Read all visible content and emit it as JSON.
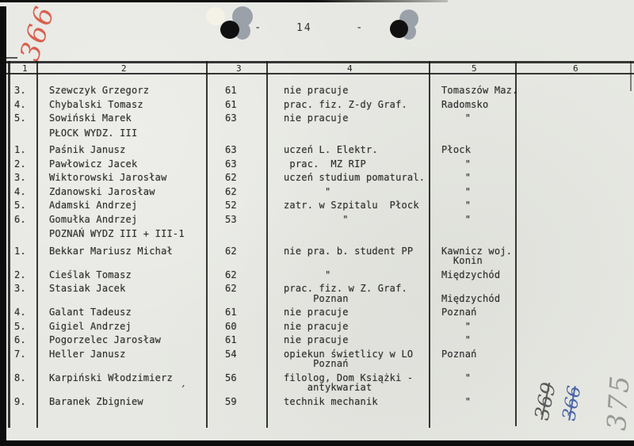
{
  "page": {
    "number_label": "14",
    "dash_left": "-",
    "dash_right": "-",
    "red_note_top_left": "366",
    "bottom_notes": [
      {
        "text": "369",
        "struck": true,
        "color": "#5a5a5a"
      },
      {
        "text": "366",
        "struck": true,
        "color": "#4a64a8"
      },
      {
        "text": "375",
        "struck": false,
        "color": "#979a96"
      }
    ],
    "paper_color": "#e7e8e3",
    "line_color": "#1e1e1e",
    "red_ink_color": "#d9604f"
  },
  "table": {
    "headers": [
      "1",
      "2",
      "3",
      "4",
      "5",
      "6"
    ],
    "rows": [
      {
        "num": "3.",
        "name": "Szewczyk Grzegorz",
        "year": "61",
        "job": "nie pracuje",
        "place": "Tomaszów Maz."
      },
      {
        "num": "4.",
        "name": "Chybalski Tomasz",
        "year": "61",
        "job": "prac. fiz. Z-dy Graf.",
        "place": "Radomsko"
      },
      {
        "num": "5.",
        "name": "Sowiński Marek",
        "year": "63",
        "job": "nie pracuje",
        "place": "    \""
      },
      {
        "type": "section",
        "name": "PŁOCK WYDZ. III"
      },
      {
        "num": "1.",
        "name": "Paśnik Janusz",
        "year": "63",
        "job": "uczeń L. Elektr.",
        "place": "Płock"
      },
      {
        "num": "2.",
        "name": "Pawłowicz Jacek",
        "year": "63",
        "job": " prac.  MZ RIP",
        "place": "    \""
      },
      {
        "num": "3.",
        "name": "Wiktorowski Jarosław",
        "year": "62",
        "job": "uczeń studium pomatural.",
        "place": "    \""
      },
      {
        "num": "4.",
        "name": "Zdanowski Jarosław",
        "year": "62",
        "job": "       \"",
        "place": "    \""
      },
      {
        "num": "5.",
        "name": "Adamski Andrzej",
        "year": "52",
        "job": "zatr. w Szpitalu  Płock",
        "place": "    \""
      },
      {
        "num": "6.",
        "name": "Gomułka Andrzej",
        "year": "53",
        "job": "          \"",
        "place": "    \""
      },
      {
        "type": "section",
        "name": "POZNAŃ WYDZ III + III-1"
      },
      {
        "num": "1.",
        "name": "Bekkar Mariusz Michał",
        "year": "62",
        "job": "nie pra. b. student PP",
        "place": "Kawnicz woj.\n  Konin"
      },
      {
        "num": "2.",
        "name": "Cieślak Tomasz",
        "year": "62",
        "job": "       \"",
        "place": "Międzychód"
      },
      {
        "num": "3.",
        "name": "Stasiak Jacek",
        "year": "62",
        "job": "prac. fiz. w Z. Graf.\n     Poznan",
        "place": "\nMiędzychód"
      },
      {
        "num": "4.",
        "name": "Galant Tadeusz",
        "year": "61",
        "job": "nie pracuje",
        "place": "Poznań"
      },
      {
        "num": "5.",
        "name": "Gigiel Andrzej",
        "year": "60",
        "job": "nie pracuje",
        "place": "    \""
      },
      {
        "num": "6.",
        "name": "Pogorzelec Jarosław",
        "year": "61",
        "job": "nie pracuje",
        "place": "    \""
      },
      {
        "num": "7.",
        "name": "Heller Janusz",
        "year": "54",
        "job": "opiekun świetlicy w LO\n     Poznań",
        "place": "Poznań"
      },
      {
        "num": "8.",
        "name": "Karpiński Włodzimierz",
        "year": "56",
        "job": "filolog, Dom Książki -\n    antykwariat",
        "place": "    \""
      },
      {
        "num": "9.",
        "name": "Baranek Zbigniew",
        "year": "59",
        "job": "technik mechanik",
        "place": "    \""
      }
    ]
  }
}
